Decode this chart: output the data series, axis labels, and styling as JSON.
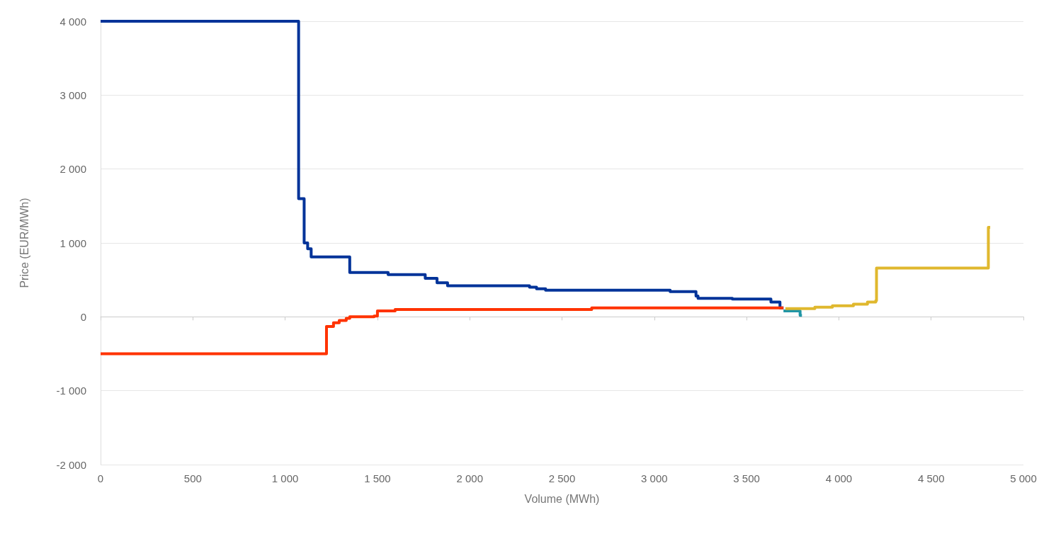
{
  "chart_data": {
    "type": "step",
    "xlabel": "Volume (MWh)",
    "ylabel": "Price (EUR/MWh)",
    "xlim": [
      0,
      5000
    ],
    "xticks": [
      0,
      500,
      {
        "value": 1000,
        "label": "1 000"
      },
      {
        "value": 1500,
        "label": "1 500"
      },
      {
        "value": 2000,
        "label": "2 000"
      },
      {
        "value": 2500,
        "label": "2 500"
      },
      {
        "value": 3000,
        "label": "3 000"
      },
      {
        "value": 3500,
        "label": "3 500"
      },
      {
        "value": 4000,
        "label": "4 000"
      },
      {
        "value": 4500,
        "label": "4 500"
      },
      {
        "value": 5000,
        "label": "5 000"
      }
    ],
    "ylim": [
      -2000,
      4000
    ],
    "yticks": [
      {
        "value": -2000,
        "label": "-2 000"
      },
      {
        "value": -1000,
        "label": "-1 000"
      },
      0,
      {
        "value": 1000,
        "label": "1 000"
      },
      {
        "value": 2000,
        "label": "2 000"
      },
      {
        "value": 3000,
        "label": "3 000"
      },
      {
        "value": 4000,
        "label": "4 000"
      }
    ],
    "grid": "y",
    "marker": "none",
    "line_style": "solid",
    "series": [
      {
        "color": "#003399",
        "x": [
          0,
          1073,
          1103,
          1122,
          1141,
          1350,
          1558,
          1759,
          1823,
          1880,
          2324,
          2362,
          2411,
          3086,
          3226,
          3237,
          3423,
          3632,
          3681,
          3700
        ],
        "values": [
          4000,
          1600,
          1000,
          920,
          810,
          600,
          570,
          520,
          460,
          420,
          400,
          380,
          360,
          340,
          280,
          250,
          240,
          200,
          120,
          120
        ]
      },
      {
        "color": "#ff3300",
        "x": [
          0,
          1224,
          1262,
          1293,
          1331,
          1350,
          1482,
          1500,
          1596,
          2661,
          3700
        ],
        "values": [
          -500,
          -130,
          -80,
          -50,
          -20,
          0,
          10,
          80,
          100,
          120,
          120
        ]
      },
      {
        "color": "#2196a6",
        "x": [
          3700,
          3790,
          3800
        ],
        "values": [
          80,
          20,
          20
        ]
      },
      {
        "color": "#e0b82e",
        "x": [
          3710,
          3870,
          3965,
          4079,
          4155,
          4200,
          4204,
          4810,
          4820
        ],
        "values": [
          110,
          130,
          150,
          170,
          200,
          220,
          660,
          1210,
          1210
        ]
      }
    ]
  }
}
